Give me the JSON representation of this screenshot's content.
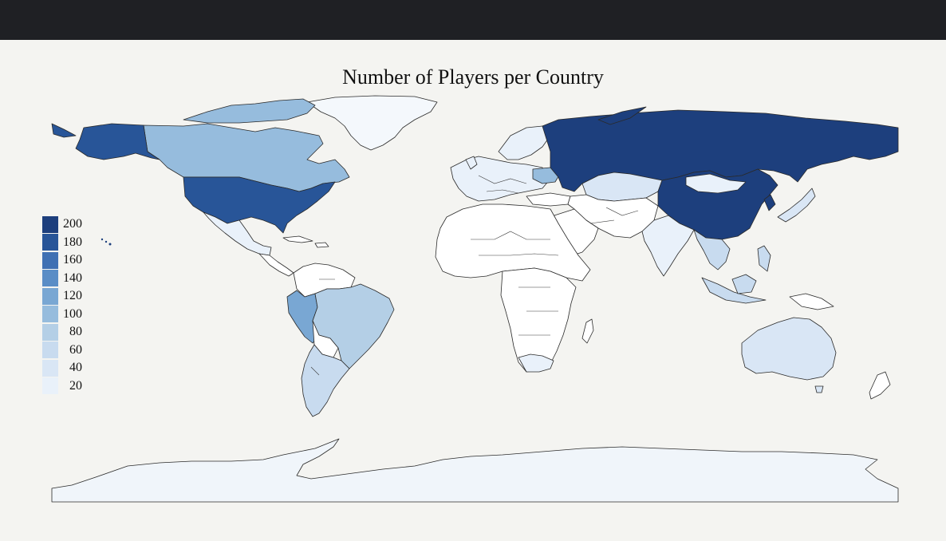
{
  "title": "Number of Players per Country",
  "colors": {
    "topbar": "#1f2024",
    "background": "#f4f4f1",
    "c200": "#1d3f7d",
    "c180": "#285598",
    "c160": "#3f70b3",
    "c140": "#5a8dc6",
    "c120": "#79a7d3",
    "c100": "#96bcdd",
    "c80": "#b4cfe6",
    "c60": "#c8dbef",
    "c40": "#d9e6f5",
    "c20": "#e9f1fa",
    "c0": "#ffffff",
    "antarctica": "#f0f5fa"
  },
  "legend": [
    {
      "label": "200",
      "color": "#1d3f7d"
    },
    {
      "label": "180",
      "color": "#285598"
    },
    {
      "label": "160",
      "color": "#3f70b3"
    },
    {
      "label": "140",
      "color": "#5a8dc6"
    },
    {
      "label": "120",
      "color": "#79a7d3"
    },
    {
      "label": "100",
      "color": "#96bcdd"
    },
    {
      "label": "80",
      "color": "#b4cfe6"
    },
    {
      "label": "60",
      "color": "#c8dbef"
    },
    {
      "label": "40",
      "color": "#d9e6f5"
    },
    {
      "label": "20",
      "color": "#e9f1fa"
    }
  ],
  "legend_range": [
    20,
    200
  ]
}
